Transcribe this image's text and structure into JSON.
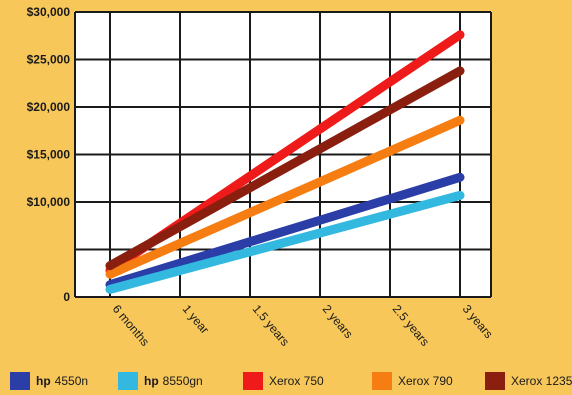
{
  "chart_data": {
    "type": "line",
    "title": "",
    "xlabel": "",
    "ylabel": "",
    "categories": [
      "6 months",
      "1 year",
      "1.5 years",
      "2 years",
      "2.5 years",
      "3 years"
    ],
    "ylim": [
      0,
      30000
    ],
    "y_ticks": [
      "0",
      "$10,000",
      "$15,000",
      "$20,000",
      "$25,000",
      "$30,000"
    ],
    "y_tick_values": [
      0,
      10000,
      15000,
      20000,
      25000,
      30000
    ],
    "grid": true,
    "legend_position": "bottom",
    "series": [
      {
        "name": "hp 4550n",
        "brand": "hp",
        "model": "4550n",
        "color": "#2b3ea8",
        "values": [
          1300,
          3560,
          5820,
          8080,
          10340,
          12600
        ]
      },
      {
        "name": "hp 8550gn",
        "brand": "hp",
        "model": "8550gn",
        "color": "#33b8e0",
        "values": [
          800,
          2780,
          4760,
          6740,
          8720,
          10700
        ]
      },
      {
        "name": "Xerox 750",
        "brand": "",
        "model": "Xerox 750",
        "color": "#ef1a1a",
        "values": [
          2800,
          7760,
          12720,
          17680,
          22640,
          27600
        ]
      },
      {
        "name": "Xerox 790",
        "brand": "",
        "model": "Xerox 790",
        "color": "#f57d12",
        "values": [
          2400,
          5640,
          8880,
          12120,
          15360,
          18600
        ]
      },
      {
        "name": "Xerox 1235",
        "brand": "",
        "model": "Xerox 1235",
        "color": "#8a1f10",
        "values": [
          3300,
          7400,
          11500,
          15600,
          19700,
          23800
        ]
      }
    ]
  }
}
